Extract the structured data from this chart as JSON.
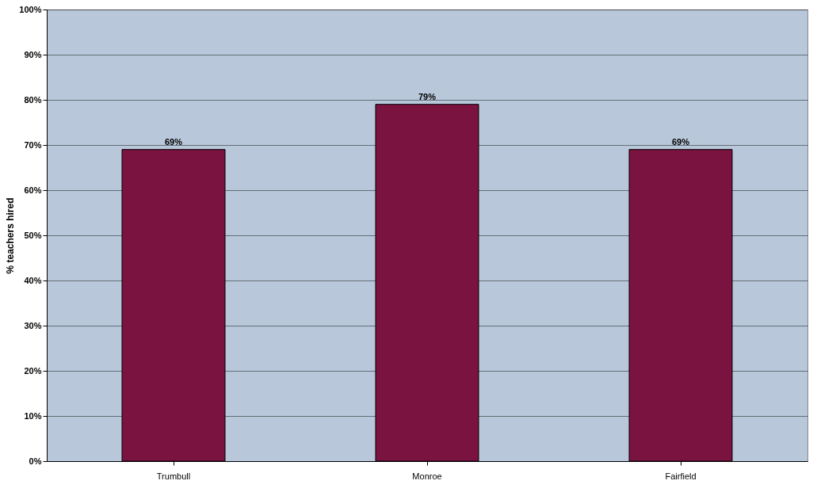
{
  "chart_data": {
    "type": "bar",
    "ylabel": "% teachers hired",
    "categories": [
      "Trumbull",
      "Monroe",
      "Fairfield"
    ],
    "values": [
      69,
      79,
      69
    ],
    "value_labels": [
      "69%",
      "79%",
      "69%"
    ],
    "color": "#7b1341",
    "ylim": [
      0,
      100
    ],
    "yticks": [
      {
        "value": 0,
        "label": "0%"
      },
      {
        "value": 10,
        "label": "10%"
      },
      {
        "value": 20,
        "label": "20%"
      },
      {
        "value": 30,
        "label": "30%"
      },
      {
        "value": 40,
        "label": "40%"
      },
      {
        "value": 50,
        "label": "50%"
      },
      {
        "value": 60,
        "label": "60%"
      },
      {
        "value": 70,
        "label": "70%"
      },
      {
        "value": 80,
        "label": "80%"
      },
      {
        "value": 90,
        "label": "90%"
      },
      {
        "value": 100,
        "label": "100%"
      }
    ],
    "grid": "y"
  }
}
